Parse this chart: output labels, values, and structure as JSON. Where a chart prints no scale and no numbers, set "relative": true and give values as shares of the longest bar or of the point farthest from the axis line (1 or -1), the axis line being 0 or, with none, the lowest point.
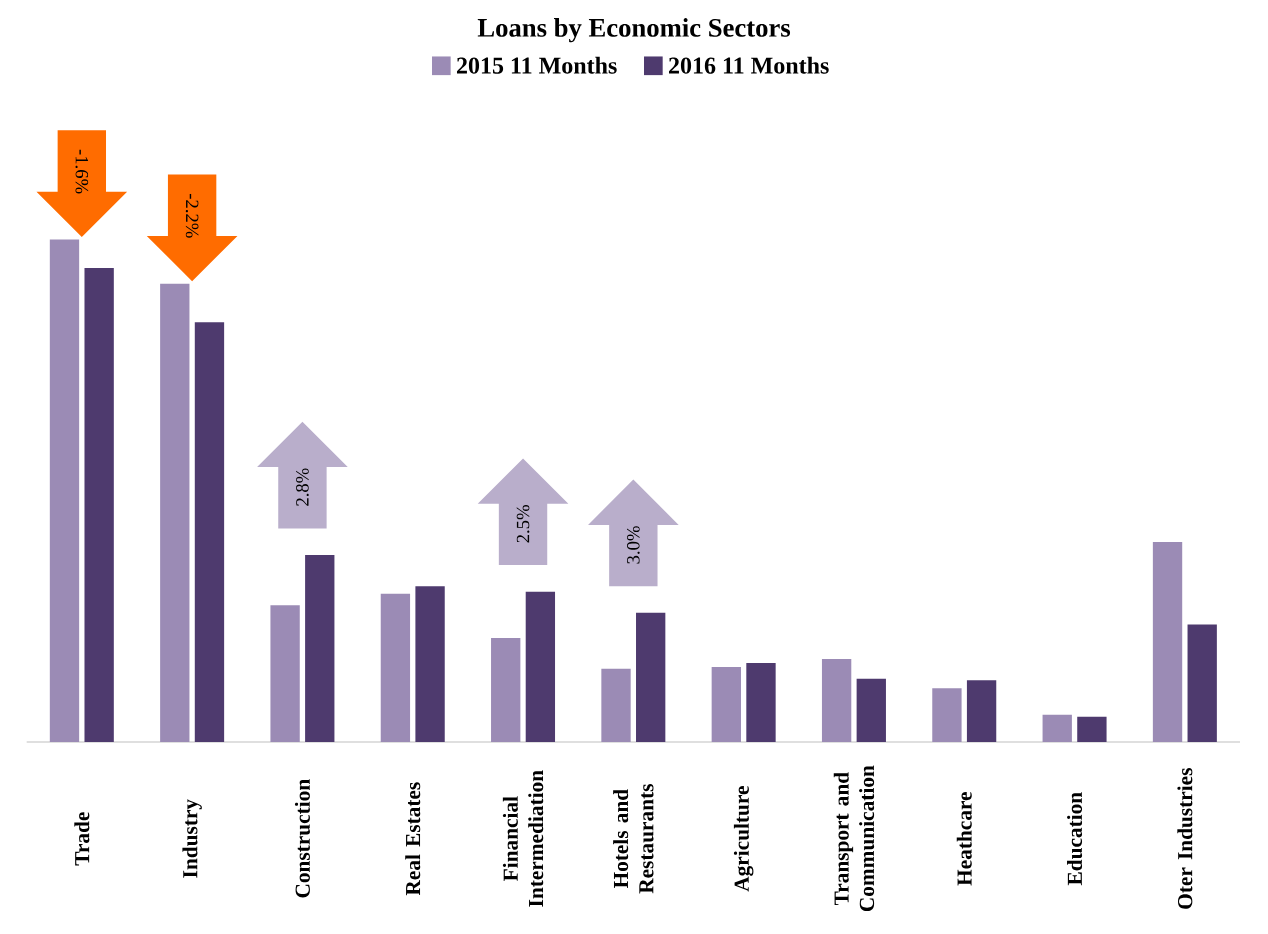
{
  "chart_data": {
    "type": "bar",
    "title": "Loans by Economic Sectors",
    "relative": true,
    "legend": "top",
    "categories": [
      "Trade",
      "Industry",
      "Construction",
      "Real Estates",
      "Financial Intermediation",
      "Hotels and Restaurants",
      "Agriculture",
      "Transport and Communication",
      "Heathcare",
      "Education",
      "Oter Industries"
    ],
    "series": [
      {
        "name": "2015 11 Months",
        "color": "#9b8bb5",
        "values": [
          1,
          0.912,
          0.272,
          0.295,
          0.207,
          0.146,
          0.149,
          0.165,
          0.107,
          0.054,
          0.398
        ]
      },
      {
        "name": "2016 11 Months",
        "color": "#4e3a6e",
        "values": [
          0.943,
          0.835,
          0.372,
          0.31,
          0.299,
          0.257,
          0.157,
          0.126,
          0.123,
          0.05,
          0.234
        ]
      }
    ],
    "annotations": [
      "-1.6%",
      "-2.2%",
      "2.8%",
      "2.5%",
      "3.0%"
    ]
  }
}
